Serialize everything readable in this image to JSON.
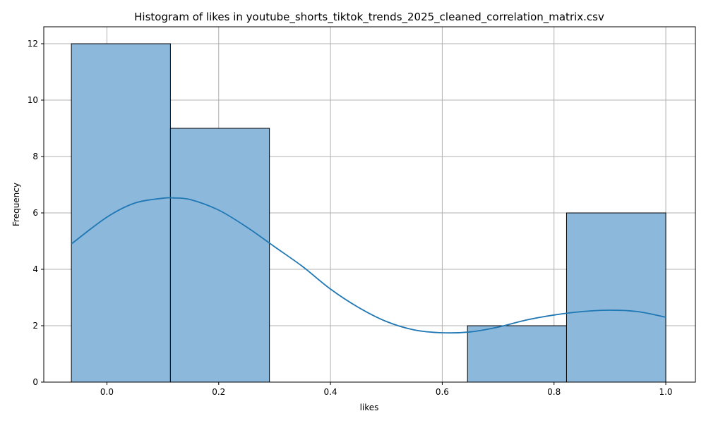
{
  "chart_data": {
    "type": "bar",
    "subtype": "histogram",
    "title": "Histogram of likes in youtube_shorts_tiktok_trends_2025_cleaned_correlation_matrix.csv",
    "xlabel": "likes",
    "ylabel": "Frequency",
    "xlim": [
      -0.113,
      1.053
    ],
    "ylim": [
      0,
      12.6
    ],
    "xticks": [
      0.0,
      0.2,
      0.4,
      0.6,
      0.8,
      1.0
    ],
    "xtick_labels": [
      "0.0",
      "0.2",
      "0.4",
      "0.6",
      "0.8",
      "1.0"
    ],
    "yticks": [
      0,
      2,
      4,
      6,
      8,
      10,
      12
    ],
    "ytick_labels": [
      "0",
      "2",
      "4",
      "6",
      "8",
      "10",
      "12"
    ],
    "grid": true,
    "bins": [
      {
        "x0": -0.0636,
        "x1": 0.1136,
        "count": 12
      },
      {
        "x0": 0.1136,
        "x1": 0.2908,
        "count": 9
      },
      {
        "x0": 0.2908,
        "x1": 0.468,
        "count": 0
      },
      {
        "x0": 0.468,
        "x1": 0.6452,
        "count": 0
      },
      {
        "x0": 0.6452,
        "x1": 0.8224,
        "count": 2
      },
      {
        "x0": 0.8224,
        "x1": 1.0,
        "count": 6
      }
    ],
    "kde": {
      "x": [
        -0.0636,
        0.0,
        0.05,
        0.1,
        0.12,
        0.15,
        0.2,
        0.25,
        0.3,
        0.35,
        0.4,
        0.45,
        0.5,
        0.55,
        0.6,
        0.65,
        0.7,
        0.75,
        0.8,
        0.85,
        0.9,
        0.95,
        1.0
      ],
      "y": [
        4.9,
        5.85,
        6.35,
        6.52,
        6.53,
        6.47,
        6.1,
        5.5,
        4.8,
        4.1,
        3.3,
        2.65,
        2.15,
        1.85,
        1.75,
        1.78,
        1.95,
        2.2,
        2.38,
        2.5,
        2.55,
        2.5,
        2.3
      ]
    },
    "colors": {
      "bar_fill": "#8cb9db",
      "bar_edge": "#000000",
      "kde_line": "#1f77b4",
      "grid": "#b0b0b0"
    }
  }
}
